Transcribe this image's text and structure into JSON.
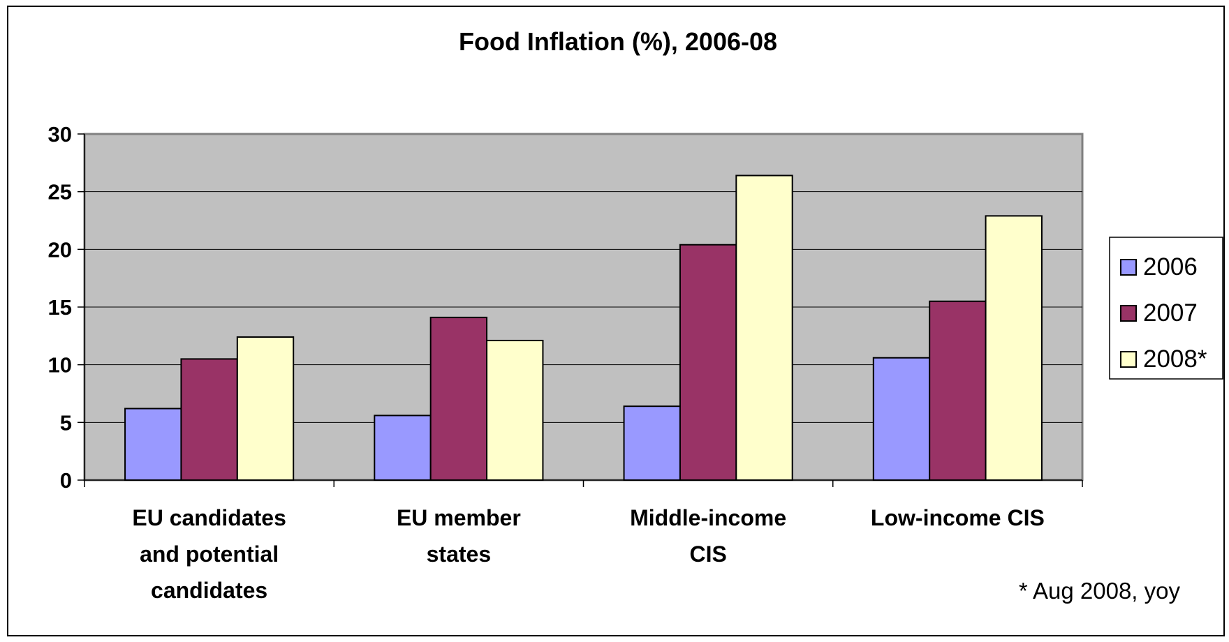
{
  "chart_data": {
    "type": "bar",
    "title": "Food Inflation (%), 2006-08",
    "xlabel": "",
    "ylabel": "",
    "ylim": [
      0,
      30
    ],
    "yticks": [
      0,
      5,
      10,
      15,
      20,
      25,
      30
    ],
    "grid": true,
    "legend_position": "right",
    "categories": [
      [
        "EU candidates",
        "and potential",
        "candidates"
      ],
      [
        "EU member",
        "states"
      ],
      [
        "Middle-income",
        "CIS"
      ],
      [
        "Low-income CIS"
      ]
    ],
    "series": [
      {
        "name": "2006",
        "color": "#9999ff",
        "values": [
          6.2,
          5.6,
          6.4,
          10.6
        ]
      },
      {
        "name": "2007",
        "color": "#993366",
        "values": [
          10.5,
          14.1,
          20.4,
          15.5
        ]
      },
      {
        "name": "2008*",
        "color": "#ffffcc",
        "values": [
          12.4,
          12.1,
          26.4,
          22.9
        ]
      }
    ],
    "plot_background": "#c0c0c0",
    "note": "* Aug 2008, yoy"
  }
}
